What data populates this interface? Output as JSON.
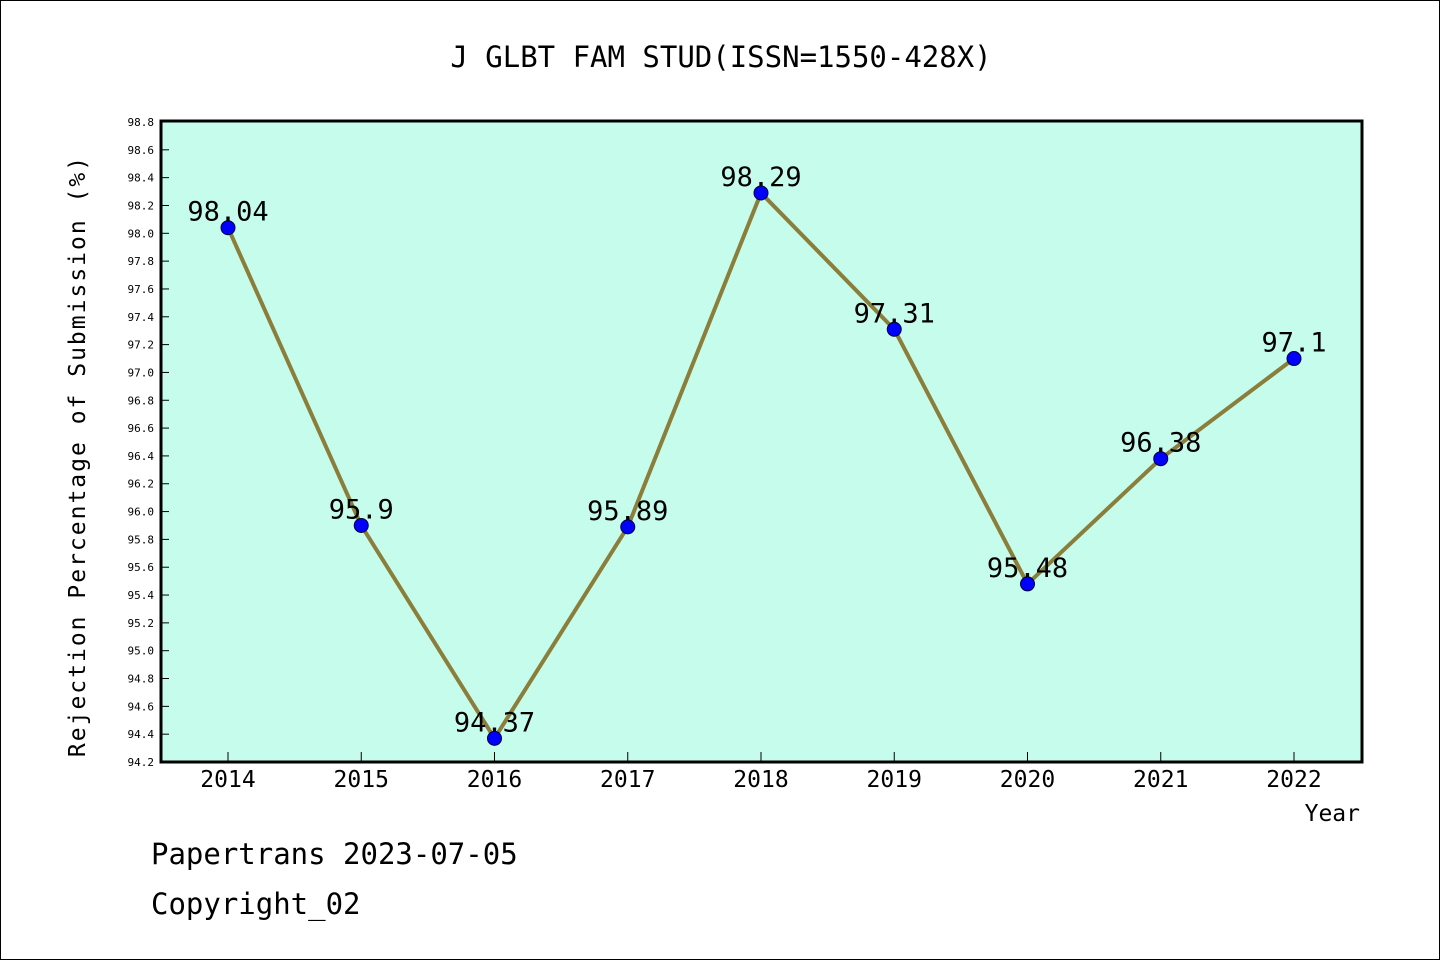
{
  "chart_data": {
    "type": "line",
    "title": "J GLBT FAM STUD(ISSN=1550-428X)",
    "xlabel": "Year",
    "ylabel": "Rejection Percentage of Submission (%)",
    "categories": [
      "2014",
      "2015",
      "2016",
      "2017",
      "2018",
      "2019",
      "2020",
      "2021",
      "2022"
    ],
    "series": [
      {
        "values": [
          98.04,
          95.9,
          94.37,
          95.89,
          98.29,
          97.31,
          95.48,
          96.38,
          97.1
        ]
      }
    ],
    "data_labels": [
      "98.04",
      "95.9",
      "94.37",
      "95.89",
      "98.29",
      "97.31",
      "95.48",
      "96.38",
      "97.1"
    ],
    "ylim": [
      94.2,
      98.8
    ],
    "yticks": [
      "94.2",
      "94.4",
      "94.6",
      "94.8",
      "95.0",
      "95.2",
      "95.4",
      "95.6",
      "95.8",
      "96.0",
      "96.2",
      "96.4",
      "96.6",
      "96.8",
      "97.0",
      "97.2",
      "97.4",
      "97.6",
      "97.8",
      "98.0",
      "98.2",
      "98.4",
      "98.6",
      "98.8"
    ],
    "grid": false,
    "legend": "none",
    "colors": {
      "plot_background": "#c6fcec",
      "line": "#8b7d3a",
      "marker": "#0000ff"
    }
  },
  "footer": {
    "line1": "Papertrans 2023-07-05",
    "line2": "Copyright_02"
  }
}
